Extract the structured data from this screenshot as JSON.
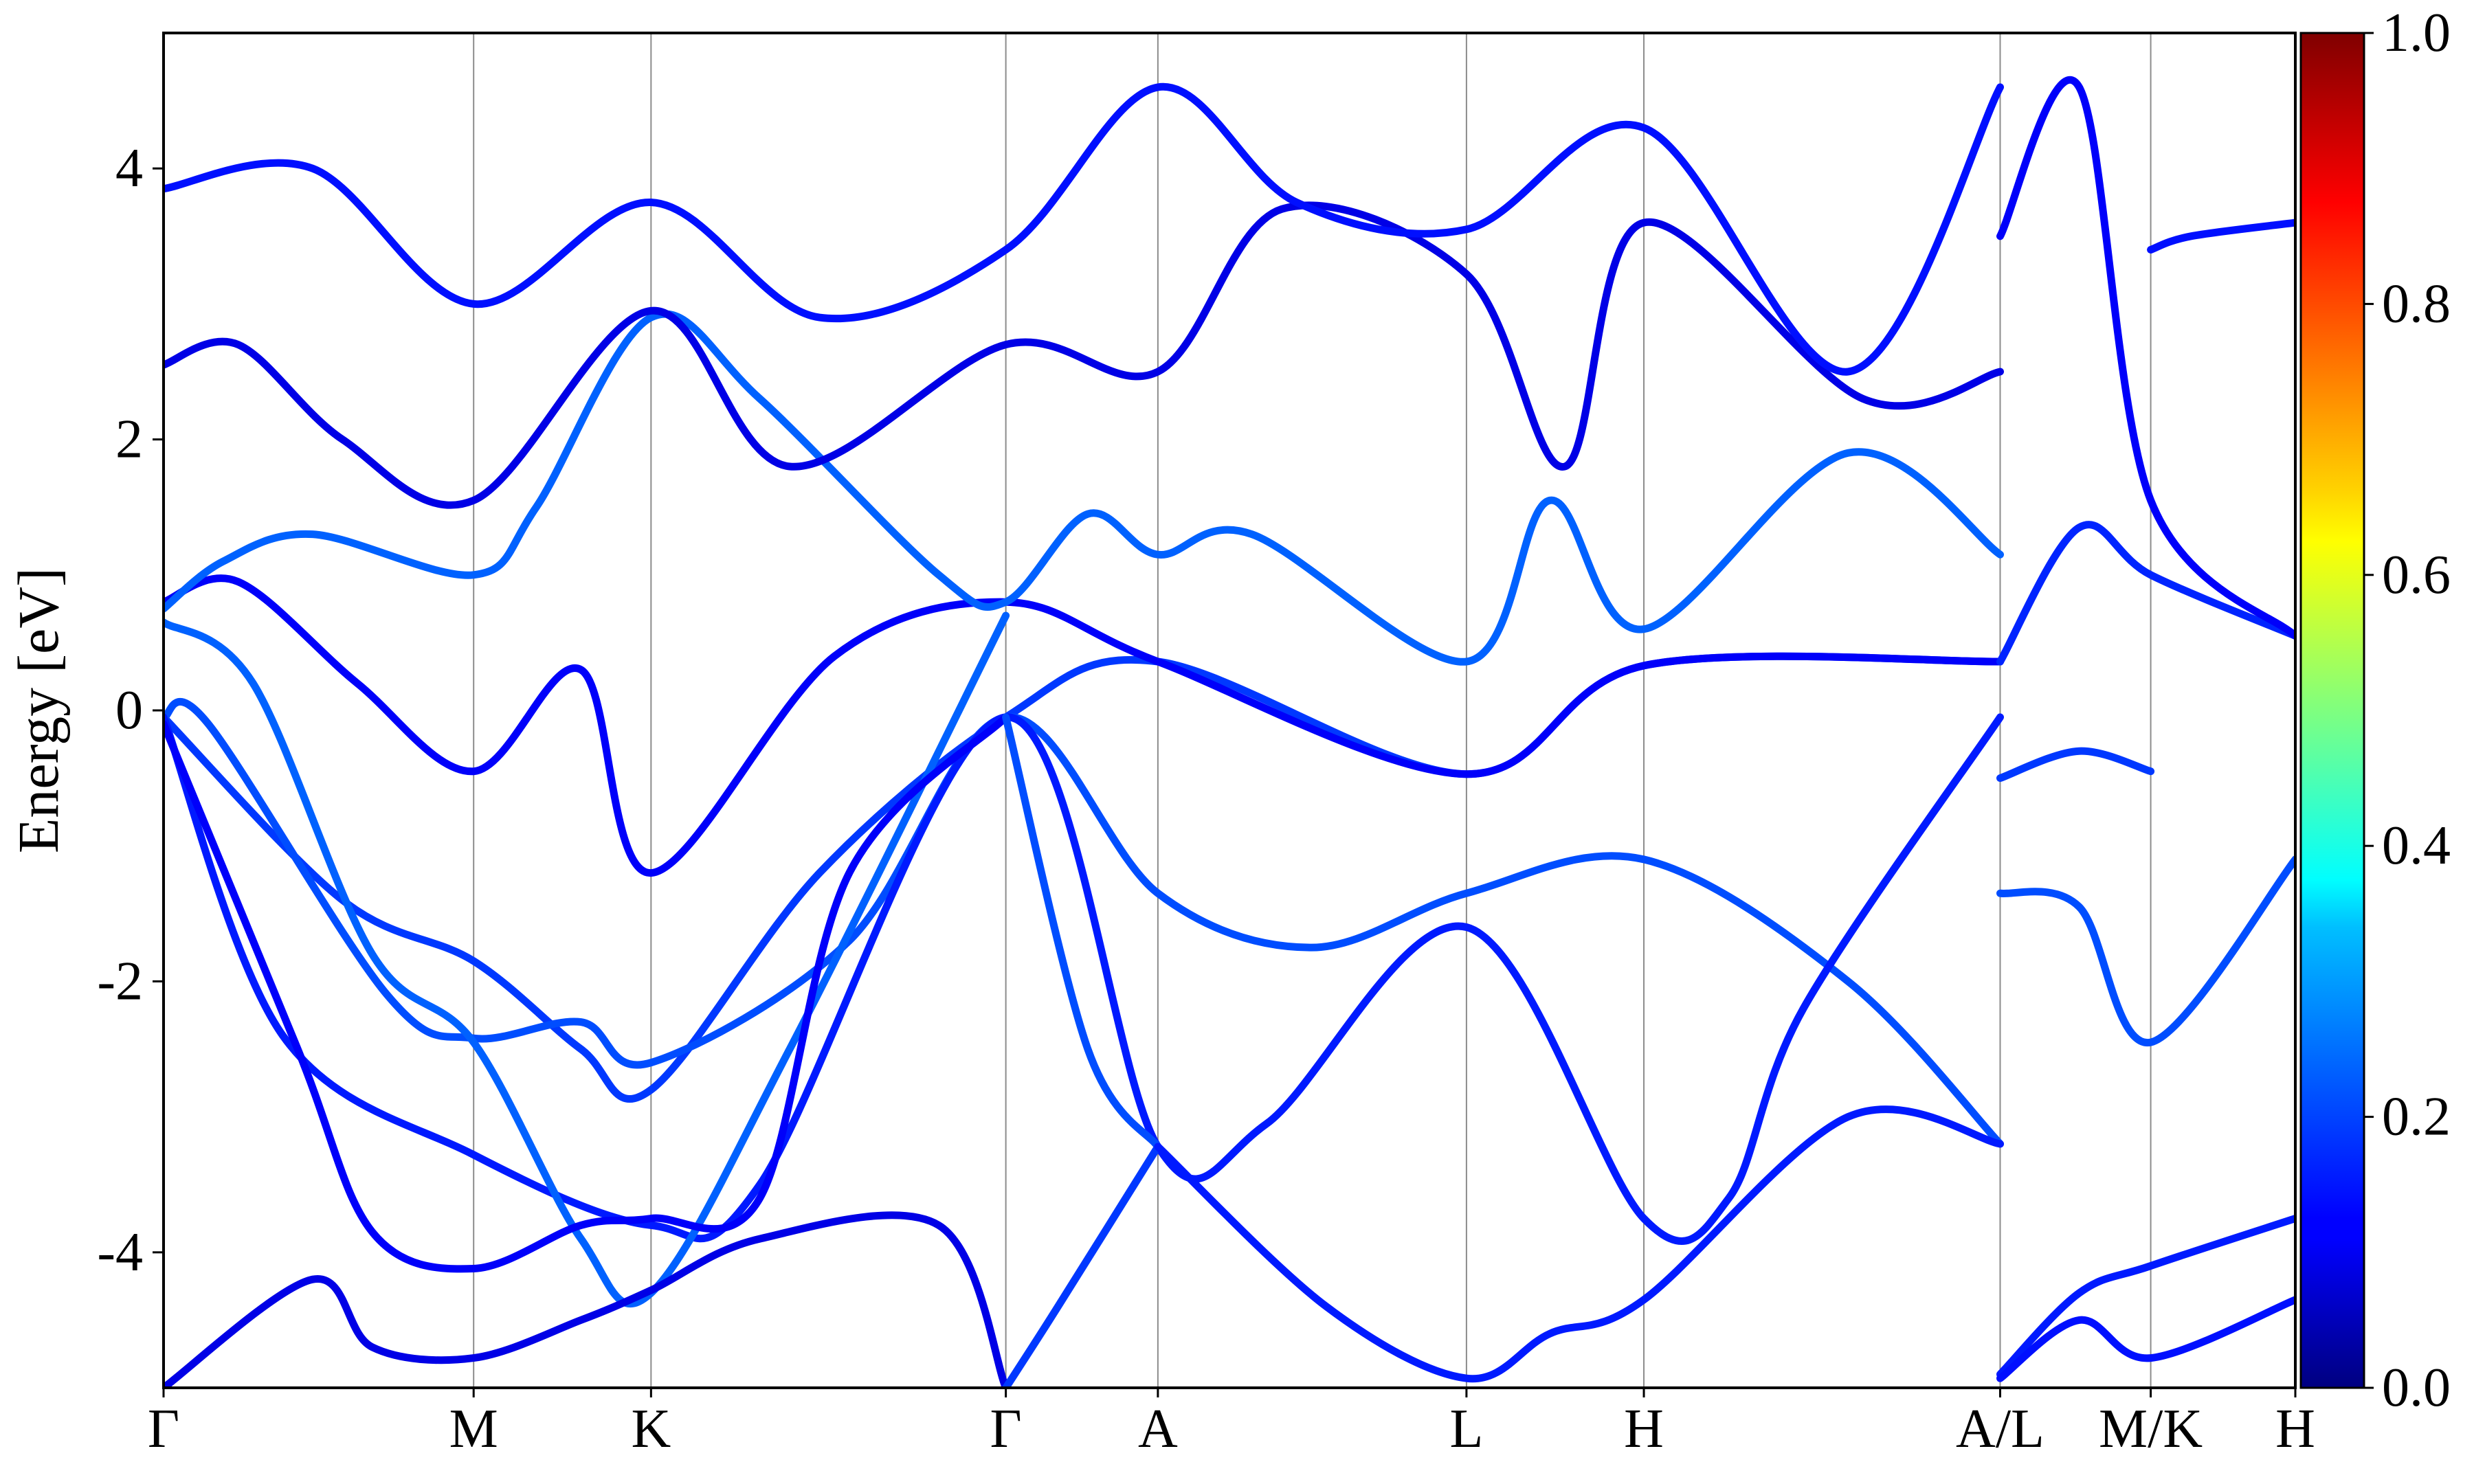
{
  "chart_data": {
    "type": "line",
    "title": "",
    "ylabel": "Energy [eV]",
    "xlabel": "",
    "ylim": [
      -5,
      5
    ],
    "yticks": [
      -4,
      -2,
      0,
      2,
      4
    ],
    "ytick_labels": [
      "-4",
      "-2",
      "0",
      "2",
      "4"
    ],
    "xlim": [
      0,
      14.3
    ],
    "kpoints": [
      {
        "label": "Γ",
        "x": 0
      },
      {
        "label": "M",
        "x": 2.08
      },
      {
        "label": "K",
        "x": 3.27
      },
      {
        "label": "Γ",
        "x": 5.65
      },
      {
        "label": "A",
        "x": 6.67
      },
      {
        "label": "L",
        "x": 8.74
      },
      {
        "label": "H",
        "x": 9.93
      },
      {
        "label": "A/L",
        "x": 12.32
      },
      {
        "label": "M/K",
        "x": 13.33
      },
      {
        "label": "H",
        "x": 14.3
      }
    ],
    "colorbar": {
      "colormap": "jet",
      "range": [
        0.0,
        1.0
      ],
      "ticks": [
        "0.0",
        "0.2",
        "0.4",
        "0.6",
        "0.8",
        "1.0"
      ]
    },
    "grid": "vertical lines at high-symmetry points",
    "series": [
      {
        "color_value": 0.18,
        "x": [
          0,
          1.2,
          2.08,
          2.8,
          3.27,
          4.4,
          5.65,
          6.67,
          8.74,
          9.93,
          12.32
        ],
        "y": [
          -0.05,
          -1.4,
          -1.85,
          -2.5,
          -2.8,
          -1.2,
          -0.05,
          0.36,
          -0.47,
          0.33,
          0.36
        ]
      },
      {
        "color_value": 0.2,
        "x": [
          0,
          0.3,
          1.5,
          2.08,
          2.8,
          3.27,
          4.6,
          5.65,
          6.67,
          7.7,
          8.74,
          9.93,
          11.3,
          12.32
        ],
        "y": [
          -0.05,
          -0.1,
          -2.1,
          -2.42,
          -2.3,
          -2.6,
          -1.7,
          -0.05,
          -1.35,
          -1.75,
          -1.35,
          -1.1,
          -2.0,
          -3.2
        ]
      },
      {
        "color_value": 0.15,
        "x": [
          0,
          0.8,
          2.08,
          3.27,
          4.0,
          5.65,
          6.67,
          7.4,
          8.74,
          9.93,
          10.5,
          11.0,
          12.32
        ],
        "y": [
          -0.05,
          -2.4,
          -3.28,
          -3.8,
          -3.5,
          -0.05,
          -3.22,
          -3.05,
          -1.6,
          -3.75,
          -3.6,
          -2.2,
          -0.05
        ]
      },
      {
        "color_value": 0.22,
        "x": [
          0,
          0.6,
          1.4,
          2.08,
          2.8,
          3.27,
          4.2,
          5.65
        ],
        "y": [
          0.65,
          0.2,
          -1.8,
          -2.45,
          -3.9,
          -4.3,
          -2.5,
          0.7
        ]
      },
      {
        "color_value": 0.12,
        "x": [
          0,
          0.9,
          1.4,
          2.08,
          2.8,
          3.27,
          4.0,
          4.6,
          5.65
        ],
        "y": [
          -0.1,
          -2.5,
          -3.85,
          -4.12,
          -3.8,
          -3.75,
          -3.6,
          -1.2,
          -0.05
        ]
      },
      {
        "color_value": 0.1,
        "x": [
          0,
          1.0,
          1.4,
          2.08,
          2.8,
          3.27,
          4.0,
          5.2,
          5.65
        ],
        "y": [
          -5.0,
          -4.2,
          -4.7,
          -4.78,
          -4.5,
          -4.28,
          -3.9,
          -3.8,
          -5.0
        ]
      },
      {
        "color_value": 0.2,
        "x": [
          5.65,
          6.2,
          6.67
        ],
        "y": [
          -0.05,
          -2.5,
          -3.22
        ]
      },
      {
        "color_value": 0.18,
        "x": [
          5.65,
          6.0,
          6.67
        ],
        "y": [
          -5.0,
          -4.4,
          -3.22
        ]
      },
      {
        "color_value": 0.15,
        "x": [
          6.67,
          7.8,
          8.74,
          9.3,
          9.93,
          11.3,
          12.32
        ],
        "y": [
          -3.22,
          -4.4,
          -4.93,
          -4.6,
          -4.35,
          -3.0,
          -3.2
        ]
      },
      {
        "color_value": 0.12,
        "x": [
          0,
          0.5,
          1.3,
          2.08,
          2.8,
          3.27,
          4.5,
          5.65,
          6.67,
          8.74,
          9.93,
          12.32
        ],
        "y": [
          0.8,
          0.95,
          0.2,
          -0.45,
          0.3,
          -1.2,
          0.4,
          0.8,
          0.36,
          -0.47,
          0.33,
          0.36
        ]
      },
      {
        "color_value": 0.22,
        "x": [
          0,
          0.4,
          1.0,
          2.08,
          2.5,
          3.27,
          4.0,
          5.2,
          5.65,
          6.2,
          6.67,
          7.3,
          8.74,
          9.3,
          9.93,
          11.3,
          12.32
        ],
        "y": [
          0.75,
          1.1,
          1.3,
          1.0,
          1.5,
          2.9,
          2.3,
          1.0,
          0.8,
          1.45,
          1.15,
          1.3,
          0.36,
          1.55,
          0.6,
          1.9,
          1.15
        ]
      },
      {
        "color_value": 0.1,
        "x": [
          0,
          0.5,
          1.2,
          2.08,
          3.27,
          4.2,
          5.65,
          6.67,
          7.5,
          8.74,
          9.4,
          9.93,
          11.4,
          12.32
        ],
        "y": [
          2.55,
          2.7,
          2.0,
          1.55,
          2.95,
          1.8,
          2.7,
          2.5,
          3.7,
          3.22,
          1.8,
          3.6,
          2.3,
          2.5
        ]
      },
      {
        "color_value": 0.14,
        "x": [
          0,
          1.0,
          2.08,
          3.27,
          4.4,
          5.65,
          6.67,
          7.6,
          8.74,
          9.93,
          11.3,
          12.32
        ],
        "y": [
          3.85,
          4.0,
          3.0,
          3.75,
          2.9,
          3.4,
          4.6,
          3.75,
          3.55,
          4.3,
          2.5,
          4.6
        ]
      },
      {
        "color_value": 0.16,
        "x": [
          12.32,
          12.85,
          13.33,
          14.3
        ],
        "y": [
          0.36,
          1.35,
          1.0,
          0.55
        ]
      },
      {
        "color_value": 0.18,
        "x": [
          12.32,
          12.85,
          13.33
        ],
        "y": [
          -0.5,
          -0.3,
          -0.45
        ]
      },
      {
        "color_value": 0.2,
        "x": [
          12.32,
          12.85,
          13.33,
          14.3
        ],
        "y": [
          -1.35,
          -1.45,
          -2.45,
          -1.1
        ]
      },
      {
        "color_value": 0.15,
        "x": [
          12.32,
          12.85,
          13.33,
          14.3
        ],
        "y": [
          -4.9,
          -4.3,
          -4.1,
          -3.75
        ]
      },
      {
        "color_value": 0.14,
        "x": [
          12.32,
          12.85,
          13.33,
          14.3
        ],
        "y": [
          -4.93,
          -4.5,
          -4.78,
          -4.35
        ]
      },
      {
        "color_value": 0.12,
        "x": [
          12.32,
          12.85,
          13.33,
          14.3
        ],
        "y": [
          3.5,
          4.6,
          1.55,
          0.55
        ]
      },
      {
        "color_value": 0.14,
        "x": [
          13.33,
          13.6,
          14.3
        ],
        "y": [
          3.4,
          3.5,
          3.6
        ]
      }
    ]
  }
}
